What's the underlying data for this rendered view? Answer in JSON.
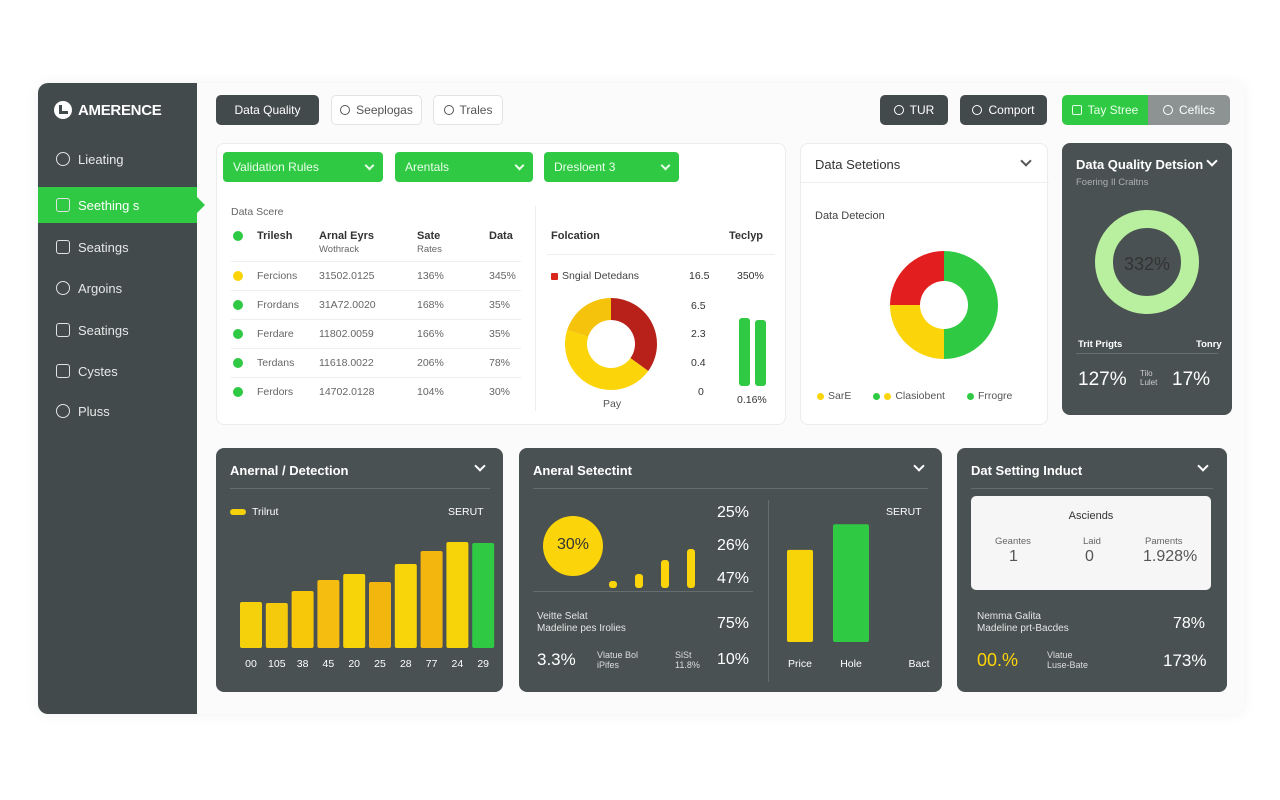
{
  "app": {
    "title": "AMERENCE",
    "colors": {
      "sidebar": "#434a4b",
      "accent": "#2fc943",
      "yellow": "#fbd40a",
      "red": "#d9261c",
      "card_dark": "#4a5152"
    }
  },
  "sidebar": {
    "items": [
      {
        "label": "Lieating",
        "icon": "lightbulb-icon",
        "active": false
      },
      {
        "label": "Seething s",
        "icon": "cursor-icon",
        "active": true
      },
      {
        "label": "Seatings",
        "icon": "grid-icon",
        "active": false
      },
      {
        "label": "Argoins",
        "icon": "gear-icon",
        "active": false
      },
      {
        "label": "Seatings",
        "icon": "calendar-icon",
        "active": false
      },
      {
        "label": "Cystes",
        "icon": "copy-icon",
        "active": false
      },
      {
        "label": "Pluss",
        "icon": "wrench-icon",
        "active": false
      }
    ]
  },
  "toolbar": {
    "left": [
      {
        "label": "Data Quality",
        "style": "dark"
      },
      {
        "label": "Seeplogas",
        "style": "light",
        "icon": "circle-icon"
      },
      {
        "label": "Trales",
        "style": "light",
        "icon": "user-icon"
      }
    ],
    "right": [
      {
        "label": "TUR",
        "style": "dark",
        "icon": "clock-icon"
      },
      {
        "label": "Comport",
        "style": "dark",
        "icon": "clock-icon"
      },
      {
        "label": "Tay Stree",
        "style": "green",
        "icon": "box-icon"
      },
      {
        "label": "Cefilcs",
        "style": "grey",
        "icon": "info-icon"
      }
    ]
  },
  "rules_panel": {
    "dropdowns": [
      "Validation Rules",
      "Arentals",
      "Dresloent 3"
    ],
    "table_caption": "Data Scere",
    "headers": [
      "Trilesh",
      "Arnal Eyrs",
      "Sate",
      "Data"
    ],
    "subheaders": [
      "Wothrack",
      "Rates"
    ],
    "rows": [
      {
        "name": "Fercions",
        "date": "31502.0125",
        "rate": "136%",
        "data": "345%",
        "status": "warn"
      },
      {
        "name": "Frordans",
        "date": "31A72.0020",
        "rate": "168%",
        "data": "35%",
        "status": "ok"
      },
      {
        "name": "Ferdare",
        "date": "11802.0059",
        "rate": "166%",
        "data": "35%",
        "status": "ok"
      },
      {
        "name": "Terdans",
        "date": "11618.0022",
        "rate": "206%",
        "data": "78%",
        "status": "ok"
      },
      {
        "name": "Ferdors",
        "date": "14702.0128",
        "rate": "104%",
        "data": "30%",
        "status": "ok"
      }
    ],
    "right_headers": [
      "Folcation",
      "Teclyp"
    ],
    "legend_label": "Sngial Detedans",
    "legend_value": "16.5",
    "legend_pct": "350%",
    "donut_values": [
      35,
      45,
      20
    ],
    "donut_caption": "Pay",
    "axis_values": [
      "6.5",
      "2.3",
      "0.4",
      "0"
    ],
    "bar_caption": "0.16%",
    "bars": [
      0.83,
      0.8
    ]
  },
  "detections_panel": {
    "title": "Data Setetions",
    "subtitle": "Data Detecion",
    "donut_values": [
      50,
      25,
      25
    ],
    "legend": [
      {
        "label": "SarE",
        "color": "#fbd40a"
      },
      {
        "label": "Clasiobent",
        "color": "#2fc943"
      },
      {
        "label": "Frrogre",
        "color": "#2fc943"
      }
    ]
  },
  "quality_panel": {
    "title": "Data Quality Detsion",
    "subtitle": "Foering Il Craltns",
    "gauge_value": "332%",
    "col1": "Trit Prigts",
    "col2": "Tonry",
    "stat1": "127%",
    "stat_mid": "Tilo Lulet",
    "stat2": "17%"
  },
  "anomaly_panel": {
    "title": "Anernal / Detection",
    "legend": "Trilrut",
    "legend_right": "SERUT",
    "chart_data": {
      "type": "bar",
      "categories": [
        "00",
        "105",
        "38",
        "45",
        "20",
        "25",
        "28",
        "77",
        "24",
        "29"
      ],
      "values": [
        46,
        45,
        57,
        68,
        74,
        66,
        84,
        97,
        106,
        105
      ],
      "ylim": [
        0,
        115
      ],
      "colors": [
        "#f5d10c",
        "#f5c90c",
        "#f7c80a",
        "#f5bd0f",
        "#f7d30a",
        "#f3b60f",
        "#f7d50a",
        "#f3b60f",
        "#f7d30a",
        "#2fc943"
      ]
    }
  },
  "selection_panel": {
    "title": "Aneral Setectint",
    "circle_value": "30%",
    "mini_bars": [
      0.15,
      0.3,
      0.6,
      0.85
    ],
    "pcts": [
      "25%",
      "26%",
      "47%"
    ],
    "label_main": "Veitte Selat",
    "label_sub": "Madeline pes Irolies",
    "pct_main": "75%",
    "stat_big": "3.3%",
    "stat_small_label": "Vlatue Bol iPifes",
    "stat_small_value": "SiSt 11.8%",
    "stat_right": "10%",
    "right_legend": "SERUT",
    "chart_data": {
      "type": "bar",
      "categories": [
        "Price",
        "Hole",
        "Bact"
      ],
      "values": [
        72,
        92,
        0
      ],
      "ylim": [
        0,
        100
      ],
      "colors": [
        "#f7d30a",
        "#2fc943",
        "#2fc943"
      ]
    }
  },
  "settings_panel": {
    "title": "Dat Setting Induct",
    "box_title": "Asciends",
    "box_cols": [
      {
        "label": "Geantes",
        "value": "1"
      },
      {
        "label": "Laid",
        "value": "0"
      },
      {
        "label": "Paments",
        "value": "1.928%"
      }
    ],
    "label_main": "Nemma Galita",
    "label_sub": "Madeline prt-Bacdes",
    "pct_main": "78%",
    "stat_big": "00.%",
    "stat_small": "Vlatue Luse-Bate",
    "stat_right": "173%"
  }
}
